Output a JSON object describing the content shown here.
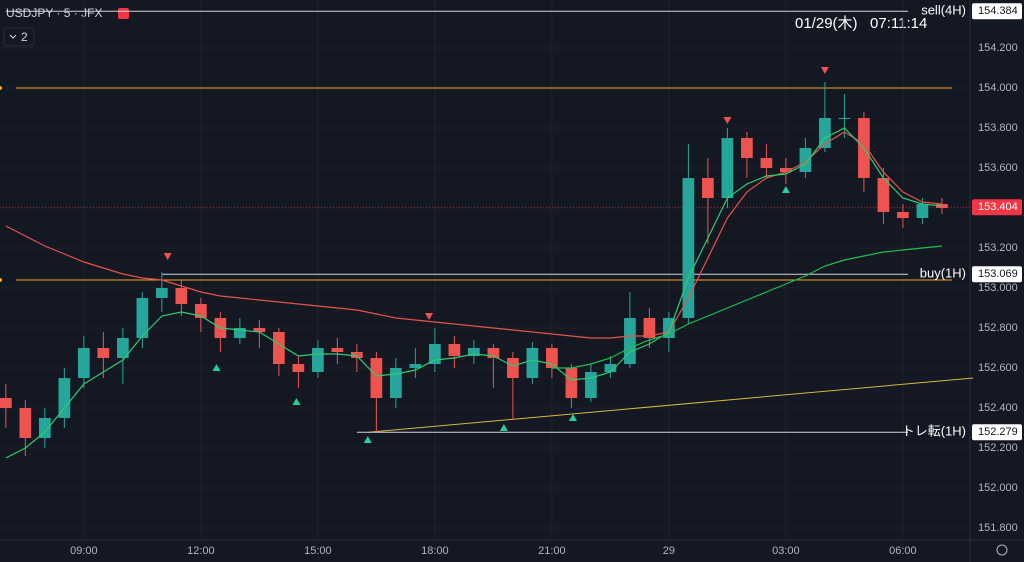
{
  "header": {
    "symbol": "USDJPY · 5 · JFX",
    "indicators": "2",
    "clock": "01/29(木)   07:11:14"
  },
  "chart_data": {
    "type": "candlestick",
    "x": [
      7,
      7.5,
      8,
      8.5,
      9,
      9.5,
      10,
      10.5,
      11,
      11.5,
      12,
      12.5,
      13,
      13.5,
      14,
      14.5,
      15,
      15.5,
      16,
      16.5,
      17,
      17.5,
      18,
      18.5,
      19,
      19.5,
      20,
      20.5,
      21,
      21.5,
      22,
      22.5,
      23,
      23.5,
      24,
      24.5,
      25,
      25.5,
      26,
      26.5,
      27,
      27.5,
      28,
      28.5,
      29,
      29.5,
      30,
      30.5,
      31
    ],
    "open": [
      152.45,
      152.4,
      152.25,
      152.35,
      152.55,
      152.7,
      152.65,
      152.75,
      152.95,
      153.0,
      152.92,
      152.85,
      152.75,
      152.8,
      152.78,
      152.62,
      152.58,
      152.7,
      152.68,
      152.65,
      152.45,
      152.6,
      152.62,
      152.72,
      152.66,
      152.7,
      152.65,
      152.55,
      152.7,
      152.6,
      152.45,
      152.58,
      152.62,
      152.85,
      152.75,
      152.85,
      153.55,
      153.45,
      153.75,
      153.65,
      153.6,
      153.58,
      153.7,
      153.85,
      153.85,
      153.55,
      153.38,
      153.35,
      153.42
    ],
    "high": [
      152.52,
      152.44,
      152.4,
      152.6,
      152.76,
      152.78,
      152.8,
      152.98,
      153.08,
      153.04,
      152.95,
      152.88,
      152.85,
      152.84,
      152.8,
      152.66,
      152.74,
      152.75,
      152.72,
      152.68,
      152.65,
      152.7,
      152.8,
      152.76,
      152.74,
      152.72,
      152.68,
      152.73,
      152.72,
      152.62,
      152.62,
      152.66,
      152.98,
      152.9,
      152.88,
      153.72,
      153.65,
      153.8,
      153.78,
      153.72,
      153.65,
      153.75,
      154.03,
      153.97,
      153.88,
      153.6,
      153.42,
      153.45,
      153.45
    ],
    "low": [
      152.3,
      152.16,
      152.2,
      152.3,
      152.5,
      152.55,
      152.52,
      152.7,
      152.88,
      152.86,
      152.78,
      152.68,
      152.72,
      152.7,
      152.56,
      152.5,
      152.55,
      152.62,
      152.58,
      152.28,
      152.4,
      152.55,
      152.58,
      152.6,
      152.62,
      152.5,
      152.34,
      152.52,
      152.55,
      152.4,
      152.43,
      152.55,
      152.6,
      152.7,
      152.68,
      152.82,
      153.22,
      153.4,
      153.55,
      153.55,
      153.52,
      153.55,
      153.68,
      153.75,
      153.48,
      153.32,
      153.3,
      153.32,
      153.37
    ],
    "close": [
      152.4,
      152.25,
      152.35,
      152.55,
      152.7,
      152.65,
      152.75,
      152.95,
      153.0,
      152.92,
      152.85,
      152.75,
      152.8,
      152.78,
      152.62,
      152.58,
      152.7,
      152.68,
      152.65,
      152.45,
      152.6,
      152.62,
      152.72,
      152.66,
      152.7,
      152.65,
      152.55,
      152.7,
      152.6,
      152.45,
      152.58,
      152.62,
      152.85,
      152.75,
      152.85,
      153.55,
      153.45,
      153.75,
      153.65,
      153.6,
      153.58,
      153.7,
      153.85,
      153.85,
      153.55,
      153.38,
      153.35,
      153.42,
      153.4
    ],
    "up_color": "#26a69a",
    "down_color": "#ef5350",
    "lines": [
      {
        "color": "#e5534b",
        "values": [
          153.31,
          153.26,
          153.21,
          153.17,
          153.13,
          153.1,
          153.07,
          153.05,
          153.04,
          153.01,
          152.98,
          152.96,
          152.95,
          152.94,
          152.93,
          152.92,
          152.91,
          152.9,
          152.89,
          152.87,
          152.85,
          152.84,
          152.83,
          152.82,
          152.81,
          152.8,
          152.79,
          152.78,
          152.77,
          152.76,
          152.75,
          152.75,
          152.76,
          152.76,
          152.78,
          152.95,
          153.15,
          153.35,
          153.48,
          153.55,
          153.58,
          153.63,
          153.72,
          153.78,
          153.72,
          153.58,
          153.48,
          153.43,
          153.42
        ]
      },
      {
        "color": "#2ecc71",
        "values": [
          152.15,
          152.2,
          152.28,
          152.4,
          152.52,
          152.58,
          152.64,
          152.76,
          152.86,
          152.88,
          152.86,
          152.8,
          152.79,
          152.78,
          152.72,
          152.66,
          152.67,
          152.67,
          152.66,
          152.56,
          152.57,
          152.59,
          152.64,
          152.65,
          152.67,
          152.66,
          152.61,
          152.64,
          152.62,
          152.54,
          152.55,
          152.58,
          152.68,
          152.72,
          152.78,
          153.05,
          153.25,
          153.45,
          153.52,
          153.56,
          153.57,
          153.62,
          153.75,
          153.8,
          153.7,
          153.55,
          153.45,
          153.42,
          153.41
        ]
      },
      {
        "color": "#1fbf4f",
        "values": [
          null,
          null,
          null,
          null,
          null,
          null,
          null,
          null,
          null,
          null,
          null,
          null,
          null,
          null,
          null,
          null,
          null,
          null,
          null,
          null,
          null,
          null,
          null,
          null,
          null,
          null,
          null,
          null,
          152.6,
          152.6,
          152.62,
          152.65,
          152.7,
          152.74,
          152.77,
          152.82,
          152.86,
          152.9,
          152.94,
          152.98,
          153.02,
          153.06,
          153.11,
          153.14,
          153.16,
          153.18,
          153.19,
          153.2,
          153.21
        ]
      }
    ],
    "levels": [
      {
        "name": "sell(4H)",
        "value": 154.384,
        "from": 7
      },
      {
        "name": "buy(1H)",
        "value": 153.069,
        "from": 11
      },
      {
        "name": "トレ転(1H)",
        "value": 152.279,
        "from": 16
      }
    ],
    "last_price": 153.404,
    "last_color": "#f23645",
    "hlines": [
      154.0,
      153.04
    ],
    "hline_color": "#f5a623",
    "trendline": {
      "x": [
        16.3,
        31.8
      ],
      "y": [
        152.279,
        152.55
      ],
      "color": "#d4b93c"
    },
    "signals_down": [
      {
        "x": 11.15,
        "y": 153.16
      },
      {
        "x": 17.85,
        "y": 152.86
      },
      {
        "x": 25.5,
        "y": 153.84
      },
      {
        "x": 28.0,
        "y": 154.09
      }
    ],
    "signals_up": [
      {
        "x": 12.4,
        "y": 152.6
      },
      {
        "x": 14.45,
        "y": 152.43
      },
      {
        "x": 16.28,
        "y": 152.24
      },
      {
        "x": 19.77,
        "y": 152.3
      },
      {
        "x": 21.54,
        "y": 152.35
      },
      {
        "x": 27.0,
        "y": 153.49
      }
    ],
    "xlim": [
      6.85,
      31.72
    ],
    "xticks": [
      {
        "value": 9,
        "label": "09:00"
      },
      {
        "value": 12,
        "label": "12:00"
      },
      {
        "value": 15,
        "label": "15:00"
      },
      {
        "value": 18,
        "label": "18:00"
      },
      {
        "value": 21,
        "label": "21:00"
      },
      {
        "value": 24,
        "label": "29"
      },
      {
        "value": 27,
        "label": "03:00"
      },
      {
        "value": 30,
        "label": "06:00"
      }
    ],
    "ylim": [
      151.74,
      154.44
    ],
    "yticks": [
      {
        "value": 151.8,
        "label": "151.800"
      },
      {
        "value": 152.0,
        "label": "152.000"
      },
      {
        "value": 152.2,
        "label": "152.200"
      },
      {
        "value": 152.4,
        "label": "152.400"
      },
      {
        "value": 152.6,
        "label": "152.600"
      },
      {
        "value": 152.8,
        "label": "152.800"
      },
      {
        "value": 153.0,
        "label": "153.000"
      },
      {
        "value": 153.2,
        "label": "153.200"
      },
      {
        "value": 153.4,
        "label": "153.400"
      },
      {
        "value": 153.6,
        "label": "153.600"
      },
      {
        "value": 153.8,
        "label": "153.800"
      },
      {
        "value": 154.0,
        "label": "154.000"
      },
      {
        "value": 154.2,
        "label": "154.200"
      }
    ],
    "grid": true
  }
}
